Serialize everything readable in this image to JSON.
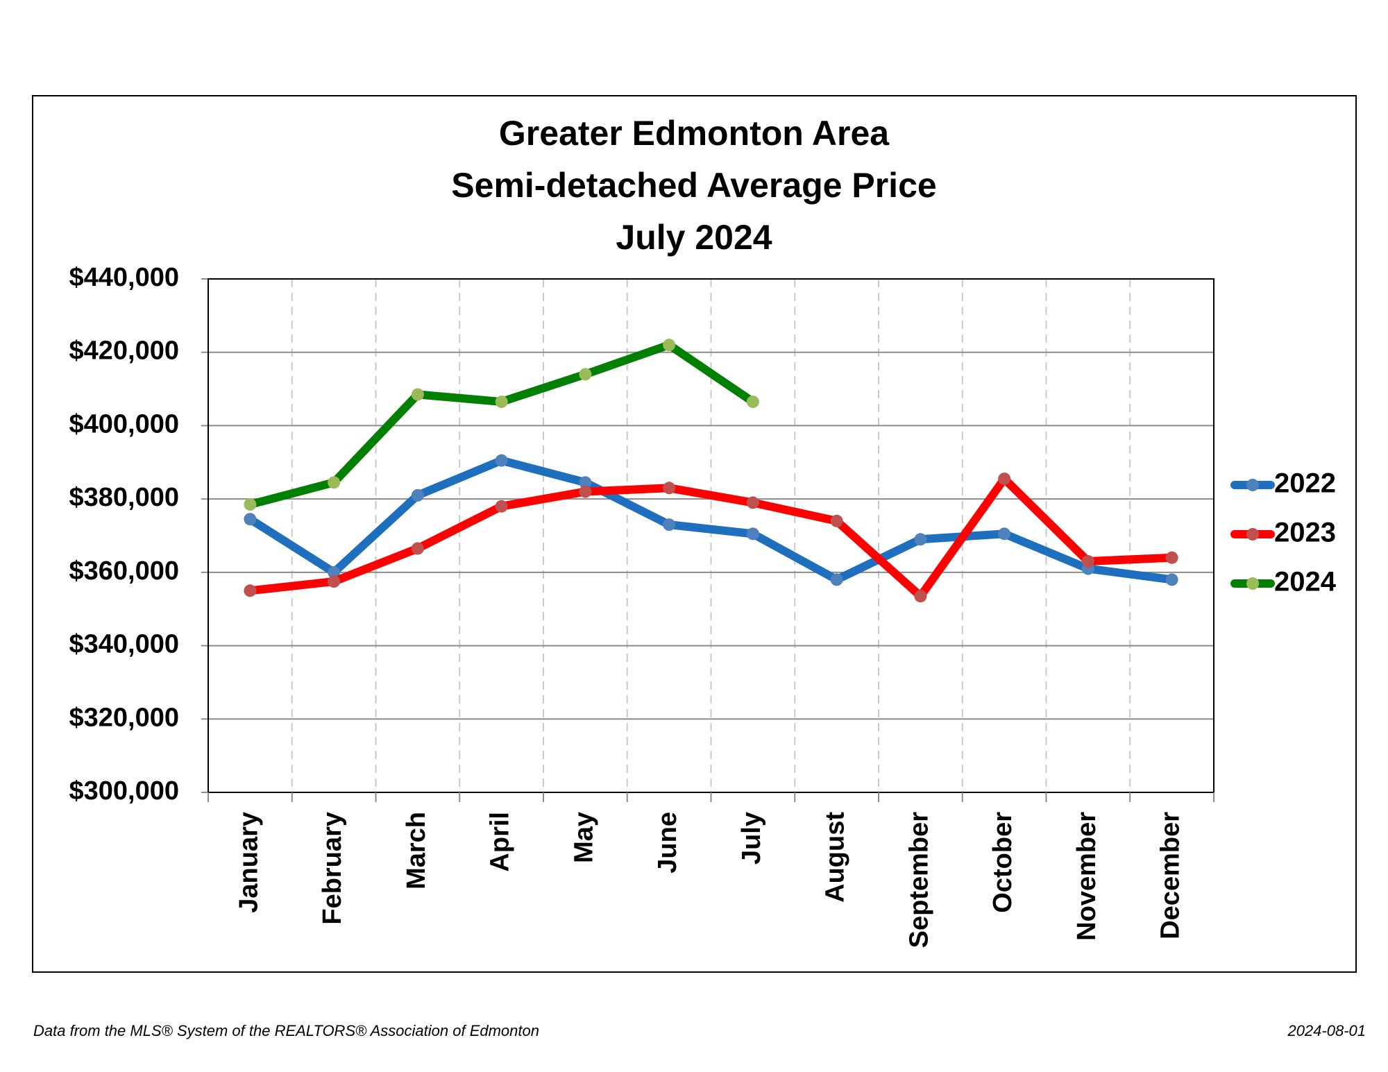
{
  "chart_data": {
    "type": "line",
    "title_lines": [
      "Greater Edmonton Area",
      "Semi-detached Average Price",
      "July 2024"
    ],
    "categories": [
      "January",
      "February",
      "March",
      "April",
      "May",
      "June",
      "July",
      "August",
      "September",
      "October",
      "November",
      "December"
    ],
    "series": [
      {
        "name": "2022",
        "color": "#1f6fbf",
        "marker_color": "#4f81bd",
        "values": [
          374500,
          360000,
          381000,
          390500,
          384500,
          373000,
          370500,
          358000,
          369000,
          370500,
          361000,
          358000
        ]
      },
      {
        "name": "2023",
        "color": "#ff0000",
        "marker_color": "#c0504d",
        "values": [
          355000,
          357500,
          366500,
          378000,
          382000,
          383000,
          379000,
          374000,
          353500,
          385500,
          363000,
          364000
        ]
      },
      {
        "name": "2024",
        "color": "#008000",
        "marker_color": "#9bbb59",
        "values": [
          378500,
          384500,
          408500,
          406500,
          414000,
          422000,
          406500,
          null,
          null,
          null,
          null,
          null
        ]
      }
    ],
    "ylim": [
      300000,
      440000
    ],
    "yticks": [
      {
        "value": 300000,
        "label": "$300,000"
      },
      {
        "value": 320000,
        "label": "$320,000"
      },
      {
        "value": 340000,
        "label": "$340,000"
      },
      {
        "value": 360000,
        "label": "$360,000"
      },
      {
        "value": 380000,
        "label": "$380,000"
      },
      {
        "value": 400000,
        "label": "$400,000"
      },
      {
        "value": 420000,
        "label": "$420,000"
      },
      {
        "value": 440000,
        "label": "$440,000"
      }
    ],
    "grid": true,
    "legend": "right",
    "footer_left": "Data from the MLS® System of the REALTORS® Association of Edmonton",
    "footer_right": "2024-08-01"
  }
}
